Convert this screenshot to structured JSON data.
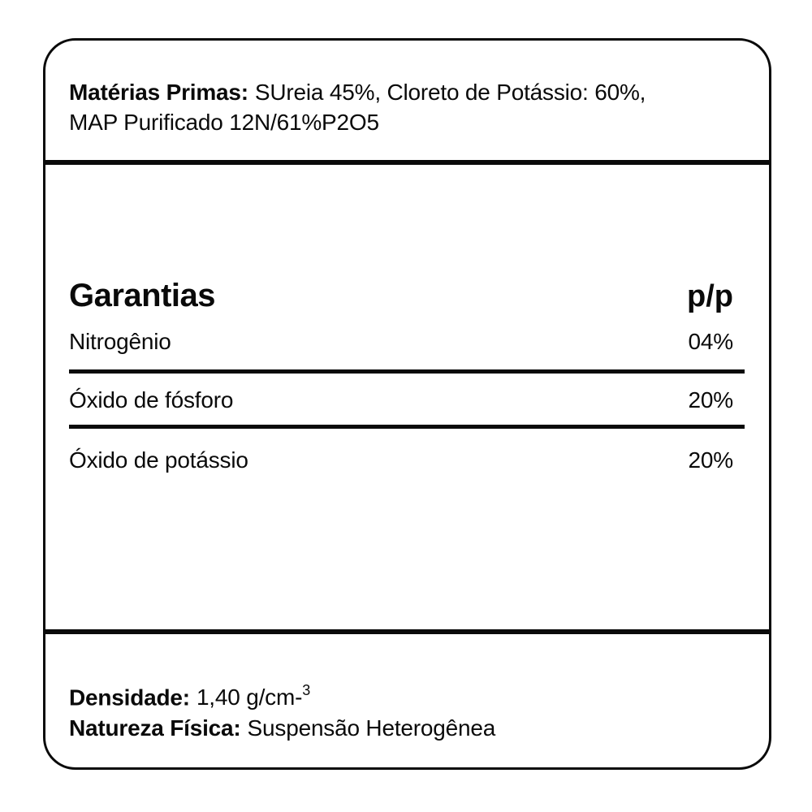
{
  "ink_color": "#0a0a0a",
  "raw_materials": {
    "heading": "Matérias Primas:",
    "line1": "SUreia 45%, Cloreto de Potássio: 60%,",
    "line2": "MAP Purificado 12N/61%P2O5"
  },
  "guarantees": {
    "title": "Garantias",
    "unit_header": "p/p",
    "rows": [
      {
        "name": "Nitrogênio",
        "value": "04%"
      },
      {
        "name": "Óxido de fósforo",
        "value": "20%"
      },
      {
        "name": "Óxido de potássio",
        "value": "20%"
      }
    ]
  },
  "density": {
    "label": "Densidade:",
    "value": "1,40 g/cm-",
    "superscript": "3"
  },
  "physical_nature": {
    "label": "Natureza Física:",
    "value": "Suspensão Heterogênea"
  }
}
